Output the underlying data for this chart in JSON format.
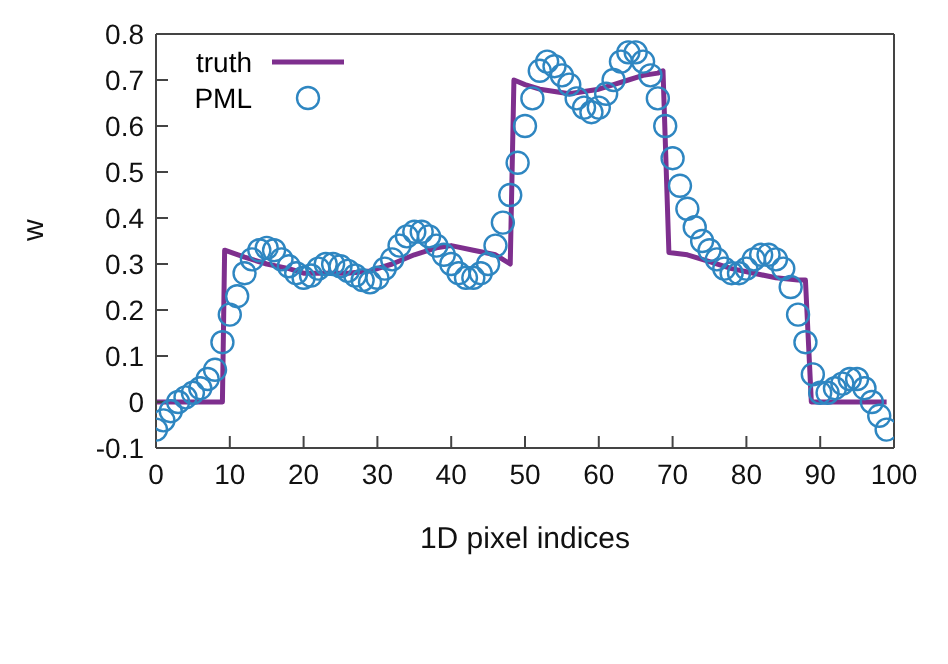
{
  "chart_data": {
    "type": "line",
    "xlabel": "1D pixel indices",
    "ylabel": "w",
    "xlim": [
      0,
      100
    ],
    "xticks": [
      0,
      10,
      20,
      30,
      40,
      50,
      60,
      70,
      80,
      90,
      100
    ],
    "ylim": [
      -0.1,
      0.8
    ],
    "yticks": [
      -0.1,
      0,
      0.1,
      0.2,
      0.3,
      0.4,
      0.5,
      0.6,
      0.7,
      0.8
    ],
    "grid": false,
    "legend": "top left",
    "series": [
      {
        "name": "truth",
        "color": "#7e2f8e",
        "marker": "none",
        "line_style": "solid",
        "x": [
          0,
          9,
          9.3,
          12,
          15,
          18,
          20,
          23,
          26,
          29,
          32,
          35,
          38,
          40,
          43,
          46,
          48,
          48.5,
          50,
          52,
          54,
          56,
          58,
          60,
          62,
          64,
          66,
          68,
          68.7,
          69.5,
          72,
          75,
          78,
          81,
          84,
          87,
          88,
          88.8,
          92,
          96,
          99
        ],
        "values": [
          0,
          0,
          0.33,
          0.315,
          0.3,
          0.29,
          0.28,
          0.28,
          0.28,
          0.285,
          0.3,
          0.32,
          0.335,
          0.34,
          0.33,
          0.32,
          0.3,
          0.7,
          0.69,
          0.68,
          0.675,
          0.67,
          0.675,
          0.68,
          0.69,
          0.7,
          0.71,
          0.715,
          0.72,
          0.325,
          0.32,
          0.305,
          0.29,
          0.28,
          0.27,
          0.265,
          0.265,
          0,
          0,
          0,
          0
        ]
      },
      {
        "name": "PML",
        "type": "scatter",
        "color": "#2e86c1",
        "marker": "circle",
        "x": [
          0,
          1,
          2,
          3,
          4,
          5,
          6,
          7,
          8,
          9,
          10,
          11,
          12,
          13,
          14,
          15,
          16,
          17,
          18,
          19,
          20,
          21,
          22,
          23,
          24,
          25,
          26,
          27,
          28,
          29,
          30,
          31,
          32,
          33,
          34,
          35,
          36,
          37,
          38,
          39,
          40,
          41,
          42,
          43,
          44,
          45,
          46,
          47,
          48,
          49,
          50,
          51,
          52,
          53,
          54,
          55,
          56,
          57,
          58,
          59,
          60,
          61,
          62,
          63,
          64,
          65,
          66,
          67,
          68,
          69,
          70,
          71,
          72,
          73,
          74,
          75,
          76,
          77,
          78,
          79,
          80,
          81,
          82,
          83,
          84,
          85,
          86,
          87,
          88,
          89,
          90,
          91,
          92,
          93,
          94,
          95,
          96,
          97,
          98,
          99
        ],
        "values": [
          -0.06,
          -0.04,
          -0.02,
          0,
          0.01,
          0.02,
          0.03,
          0.05,
          0.07,
          0.13,
          0.19,
          0.23,
          0.28,
          0.31,
          0.33,
          0.335,
          0.33,
          0.31,
          0.295,
          0.28,
          0.27,
          0.275,
          0.29,
          0.3,
          0.3,
          0.295,
          0.285,
          0.275,
          0.265,
          0.26,
          0.27,
          0.29,
          0.31,
          0.34,
          0.36,
          0.37,
          0.37,
          0.36,
          0.34,
          0.32,
          0.3,
          0.28,
          0.27,
          0.27,
          0.28,
          0.3,
          0.34,
          0.39,
          0.45,
          0.52,
          0.6,
          0.66,
          0.72,
          0.74,
          0.73,
          0.71,
          0.69,
          0.66,
          0.64,
          0.63,
          0.64,
          0.67,
          0.7,
          0.74,
          0.76,
          0.76,
          0.74,
          0.71,
          0.66,
          0.6,
          0.53,
          0.47,
          0.42,
          0.38,
          0.35,
          0.33,
          0.31,
          0.29,
          0.28,
          0.28,
          0.29,
          0.31,
          0.32,
          0.32,
          0.31,
          0.29,
          0.25,
          0.19,
          0.13,
          0.06,
          0.02,
          0.02,
          0.03,
          0.04,
          0.05,
          0.05,
          0.03,
          0,
          -0.03,
          -0.06
        ]
      }
    ]
  }
}
